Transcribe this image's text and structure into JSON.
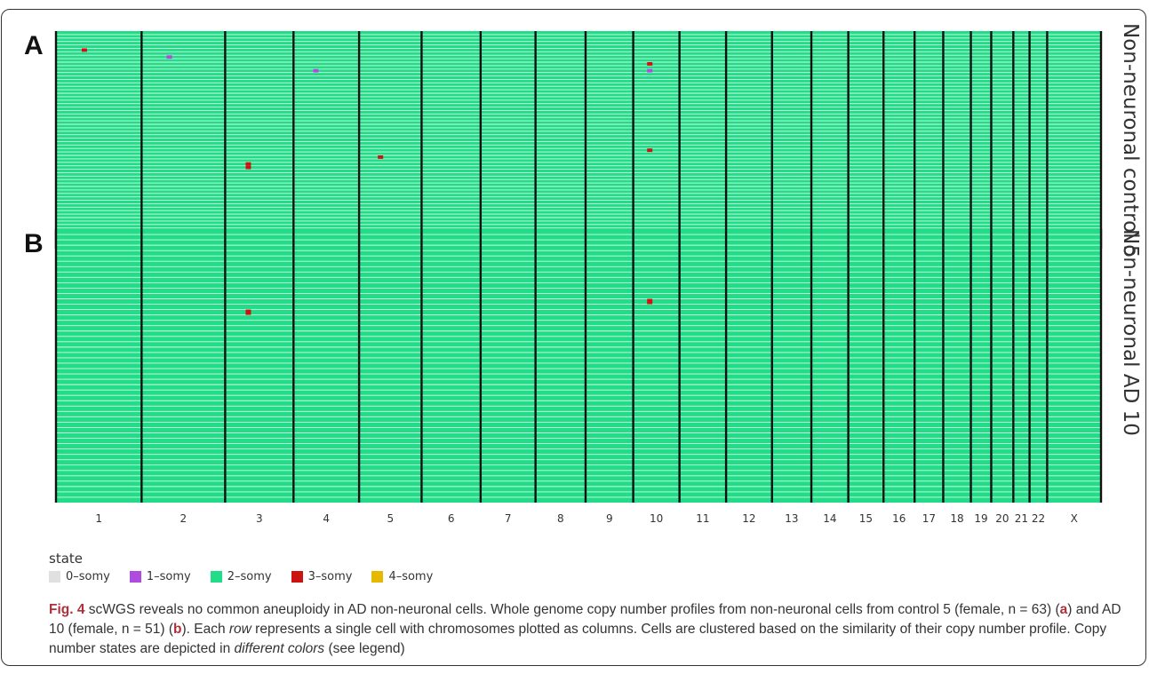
{
  "figure": {
    "caption_label": "Fig. 4",
    "caption_text_1": " scWGS reveals no common aneuploidy in AD non-neuronal cells. Whole genome copy number profiles from non-neuronal cells from control 5 (female, n = 63) (",
    "caption_a": "a",
    "caption_text_2": ") and AD 10 (female, n = 51) (",
    "caption_b": "b",
    "caption_text_3": "). Each ",
    "caption_row": "row",
    "caption_text_4": " represents a single cell with chromosomes plotted as columns. Cells are clustered based on the similarity of their copy number profile. Copy number states are depicted in ",
    "caption_colors": "different colors",
    "caption_text_5": " (see legend)"
  },
  "legend": {
    "title": "state",
    "items": [
      {
        "label": "0–somy",
        "color": "#e0e0e0"
      },
      {
        "label": "1–somy",
        "color": "#b04be0"
      },
      {
        "label": "2–somy",
        "color": "#22dd88"
      },
      {
        "label": "3–somy",
        "color": "#cc1111"
      },
      {
        "label": "4–somy",
        "color": "#e6b800"
      }
    ]
  },
  "chart_data": [
    {
      "type": "heatmap",
      "panel": "A",
      "title": "Non-neuronal control 5",
      "rows": 63,
      "x_label": "",
      "categories": [
        "1",
        "2",
        "3",
        "4",
        "5",
        "6",
        "7",
        "8",
        "9",
        "10",
        "11",
        "12",
        "13",
        "14",
        "15",
        "16",
        "17",
        "18",
        "19",
        "20",
        "21",
        "22",
        "X"
      ],
      "default_state": "2–somy",
      "events": [
        {
          "chrom": "1",
          "state": "3–somy",
          "row": 5
        },
        {
          "chrom": "2",
          "state": "1–somy",
          "row": 7
        },
        {
          "chrom": "4",
          "state": "1–somy",
          "row": 11
        },
        {
          "chrom": "10",
          "state": "1–somy",
          "row": 11
        },
        {
          "chrom": "10",
          "state": "3–somy",
          "row": 9
        },
        {
          "chrom": "3",
          "state": "3–somy",
          "row": 38
        },
        {
          "chrom": "3",
          "state": "3–somy",
          "row": 39
        },
        {
          "chrom": "5",
          "state": "3–somy",
          "row": 36
        },
        {
          "chrom": "10",
          "state": "3–somy",
          "row": 34
        }
      ]
    },
    {
      "type": "heatmap",
      "panel": "B",
      "title": "Non-neuronal AD 10",
      "rows": 51,
      "x_label": "",
      "categories": [
        "1",
        "2",
        "3",
        "4",
        "5",
        "6",
        "7",
        "8",
        "9",
        "10",
        "11",
        "12",
        "13",
        "14",
        "15",
        "16",
        "17",
        "18",
        "19",
        "20",
        "21",
        "22",
        "X"
      ],
      "default_state": "2–somy",
      "events": [
        {
          "chrom": "3",
          "state": "3–somy",
          "row": 15
        },
        {
          "chrom": "10",
          "state": "3–somy",
          "row": 13
        }
      ]
    }
  ]
}
